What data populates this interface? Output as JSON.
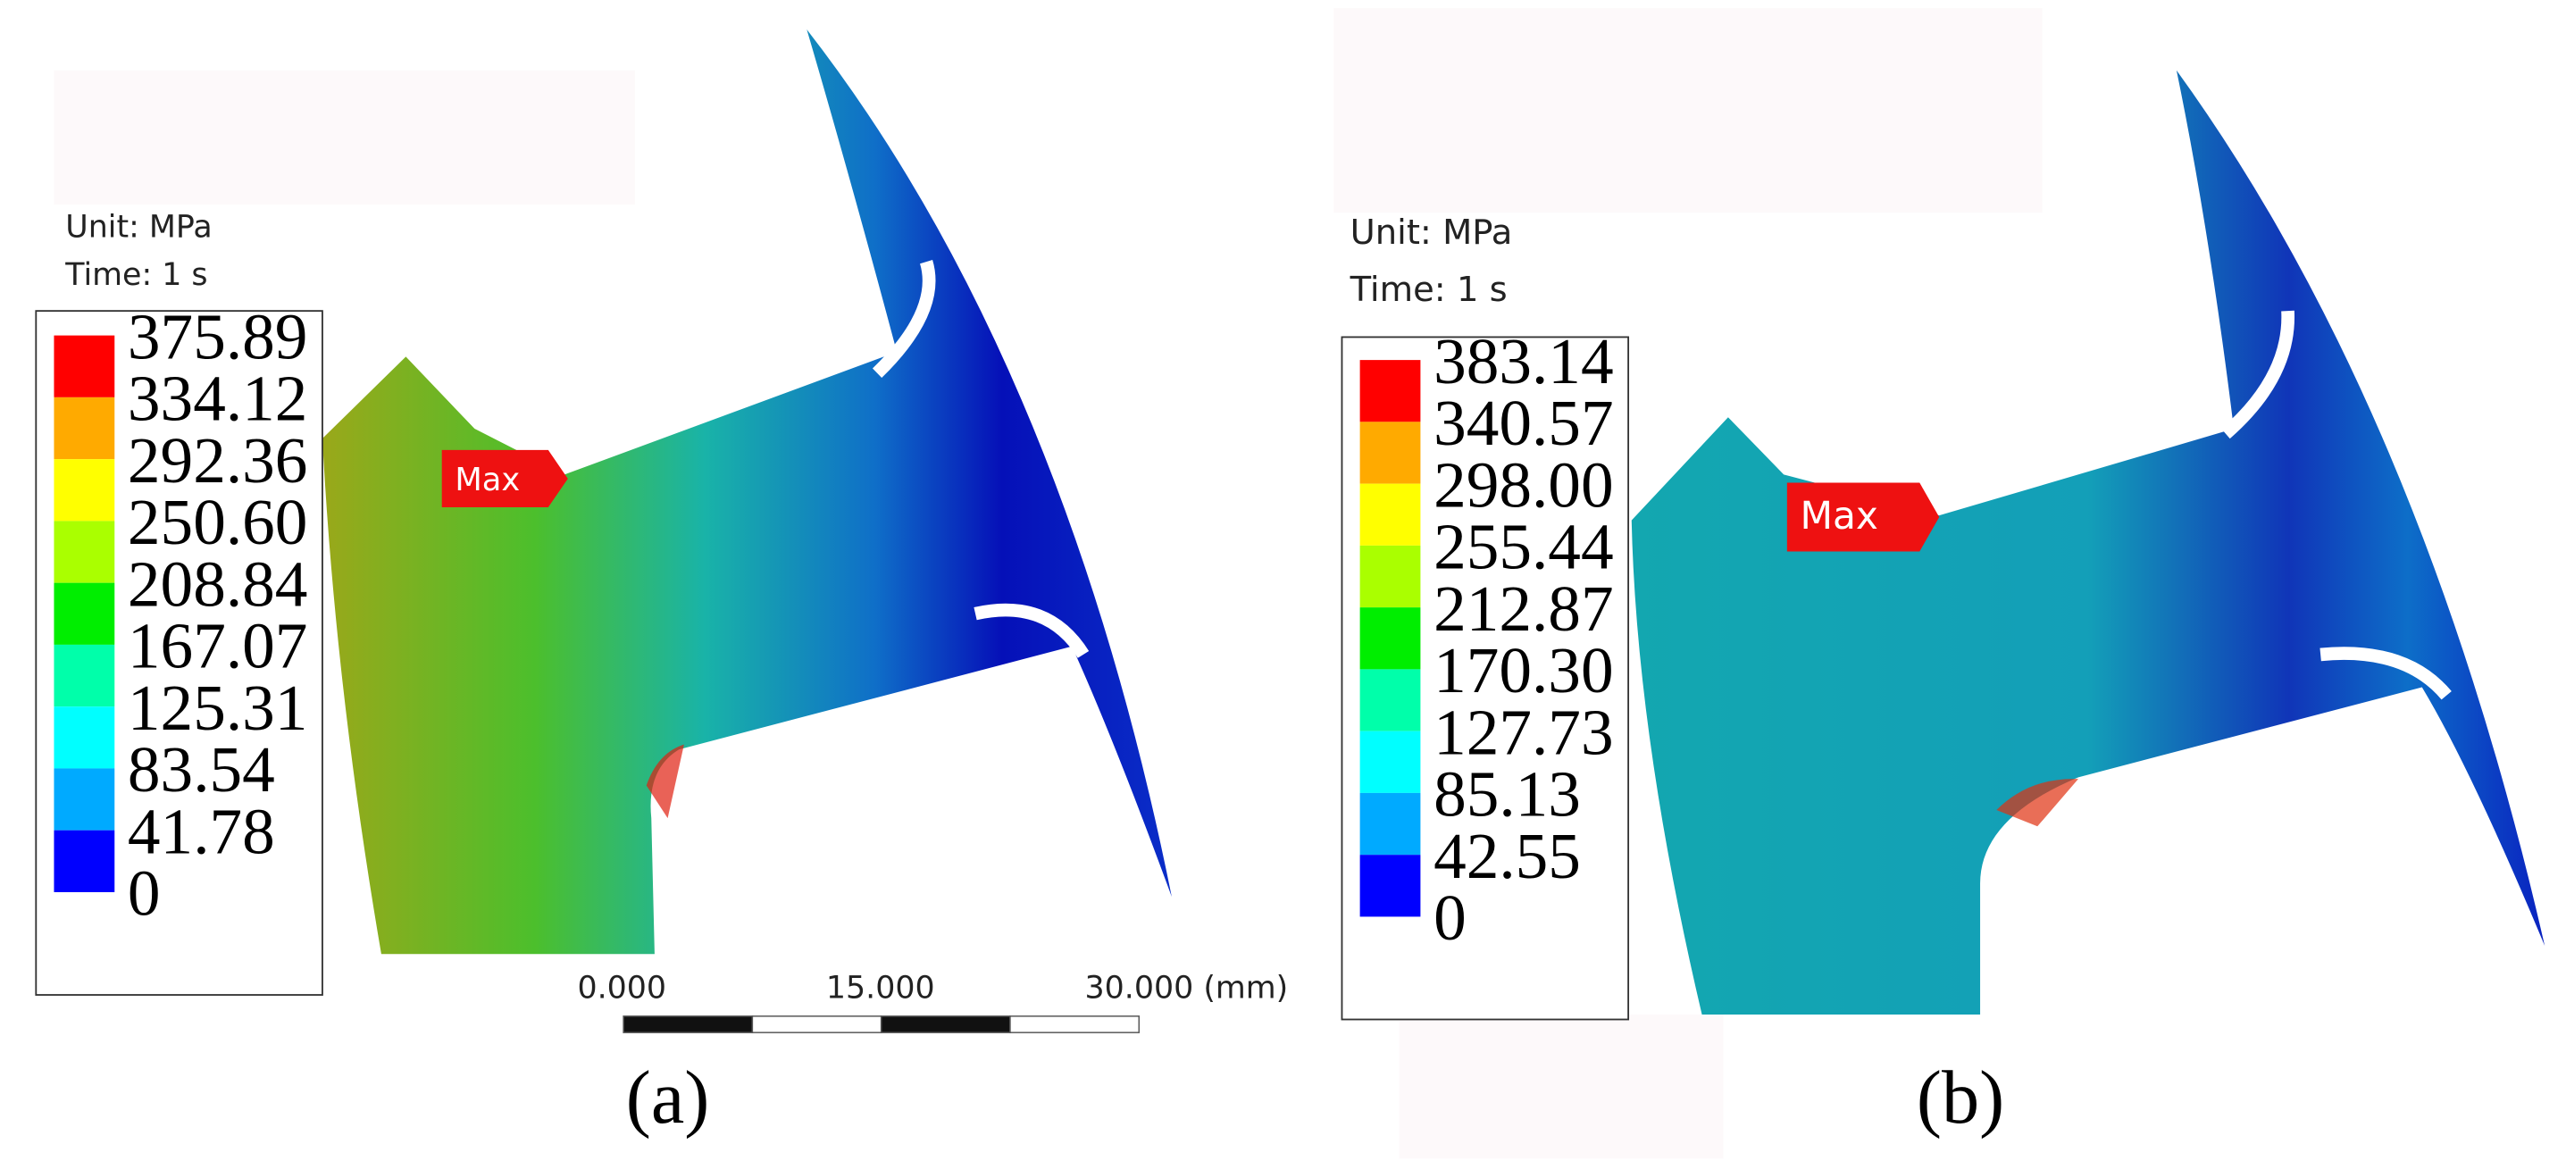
{
  "panels": [
    {
      "unit": "Unit: MPa",
      "time": "Time: 1 s",
      "legend": [
        "375.89",
        "334.12",
        "292.36",
        "250.60",
        "208.84",
        "167.07",
        "125.31",
        "83.54",
        "41.78",
        "0"
      ],
      "max_label": "Max",
      "scale_bar": [
        "0.000",
        "15.000",
        "30.000 (mm)"
      ],
      "caption": "(a)"
    },
    {
      "unit": "Unit: MPa",
      "time": "Time: 1 s",
      "legend": [
        "383.14",
        "340.57",
        "298.00",
        "255.44",
        "212.87",
        "170.30",
        "127.73",
        "85.13",
        "42.55",
        "0"
      ],
      "max_label": "Max",
      "caption": "(b)"
    }
  ]
}
